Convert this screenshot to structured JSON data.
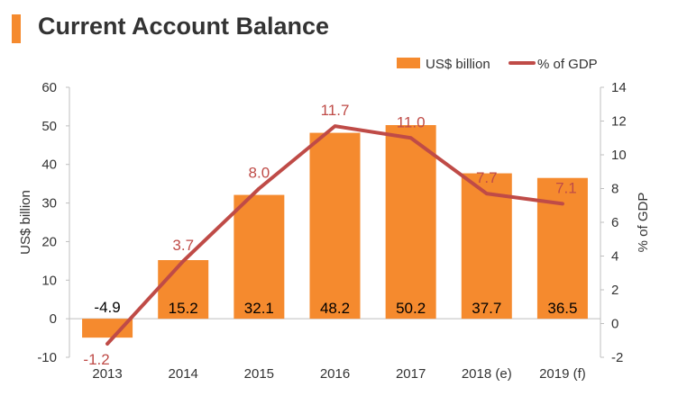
{
  "header": {
    "title": "Current Account Balance",
    "accent_color": "#F58A2E"
  },
  "chart_data": {
    "type": "bar",
    "categories": [
      "2013",
      "2014",
      "2015",
      "2016",
      "2017",
      "2018 (e)",
      "2019 (f)"
    ],
    "series": [
      {
        "name": "US$ billion",
        "type": "bar",
        "axis": "left",
        "color": "#F58A2E",
        "values": [
          -4.9,
          15.2,
          32.1,
          48.2,
          50.2,
          37.7,
          36.5
        ],
        "labels": [
          "-4.9",
          "15.2",
          "32.1",
          "48.2",
          "50.2",
          "37.7",
          "36.5"
        ]
      },
      {
        "name": "% of GDP",
        "type": "line",
        "axis": "right",
        "color": "#BF4B47",
        "values": [
          -1.2,
          3.7,
          8.0,
          11.7,
          11.0,
          7.7,
          7.1
        ],
        "labels": [
          "-1.2",
          "3.7",
          "8.0",
          "11.7",
          "11.0",
          "7.7",
          "7.1"
        ]
      }
    ],
    "ylabel": "US$ billion",
    "y2label": "% of GDP",
    "ylim": [
      -10,
      60
    ],
    "y2lim": [
      -2,
      14
    ],
    "yticks": [
      "-10",
      "0",
      "10",
      "20",
      "30",
      "40",
      "50",
      "60"
    ],
    "y2ticks": [
      "-2",
      "0",
      "2",
      "4",
      "6",
      "8",
      "10",
      "12",
      "14"
    ],
    "grid": false,
    "legend": "top-right"
  }
}
